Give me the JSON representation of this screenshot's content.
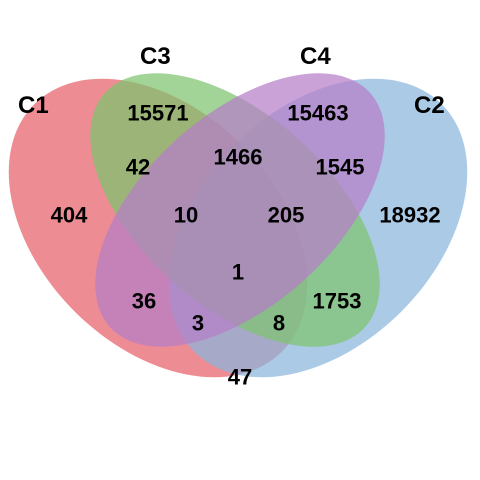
{
  "diagram": {
    "type": "venn-4-set",
    "sets": [
      {
        "key": "c1",
        "label": "C1",
        "color": "#e8606a"
      },
      {
        "key": "c3",
        "label": "C3",
        "color": "#7ec46f"
      },
      {
        "key": "c4",
        "label": "C4",
        "color": "#b57ec8"
      },
      {
        "key": "c2",
        "label": "C2",
        "color": "#8bb6dc"
      }
    ],
    "regions": {
      "c1_only": "404",
      "c3_only": "15571",
      "c4_only": "15463",
      "c2_only": "18932",
      "c1_c3": "42",
      "c3_c4": "1466",
      "c4_c2": "1545",
      "c1_c3_c4": "10",
      "c3_c4_c2": "205",
      "c1_c3_c4_c2": "1",
      "c1_c4": "36",
      "c3_c2": "1753",
      "c1_c4_c2": "3",
      "c1_c3_c2": "8",
      "c1_c2": "47"
    }
  }
}
